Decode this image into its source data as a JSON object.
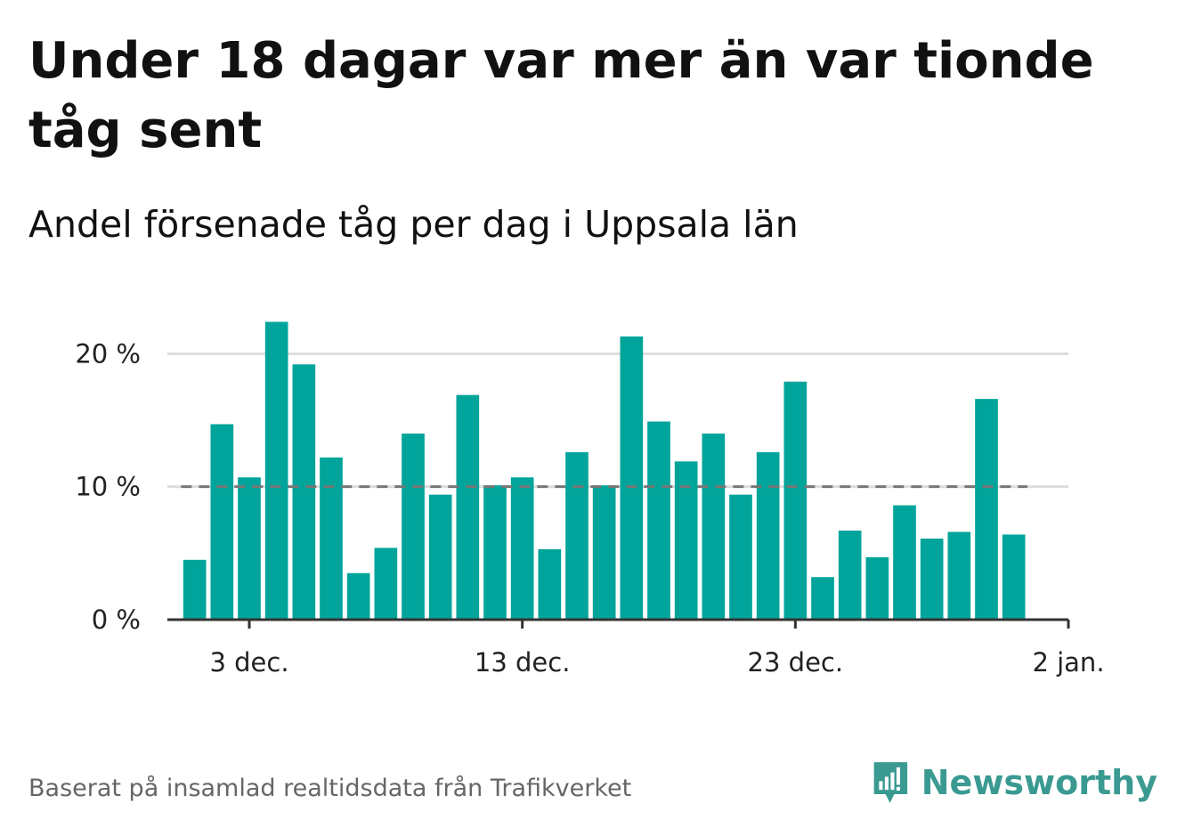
{
  "title": "Under 18 dagar var mer än var tionde tåg sent",
  "subtitle": "Andel försenade tåg per dag i Uppsala län",
  "footer": "Baserat på insamlad realtidsdata från Trafikverket",
  "brand": {
    "name": "Newsworthy",
    "icon": "newsworthy-logo-icon",
    "color": "#3a9a92"
  },
  "colors": {
    "bar": "#00a49a",
    "reference_line": "#777777",
    "grid": "#dddddd",
    "axis": "#333333"
  },
  "chart_data": {
    "type": "bar",
    "x_type": "date",
    "x": [
      "2023-12-01",
      "2023-12-02",
      "2023-12-03",
      "2023-12-04",
      "2023-12-05",
      "2023-12-06",
      "2023-12-07",
      "2023-12-08",
      "2023-12-09",
      "2023-12-10",
      "2023-12-11",
      "2023-12-12",
      "2023-12-13",
      "2023-12-14",
      "2023-12-15",
      "2023-12-16",
      "2023-12-17",
      "2023-12-18",
      "2023-12-19",
      "2023-12-20",
      "2023-12-21",
      "2023-12-22",
      "2023-12-23",
      "2023-12-24",
      "2023-12-25",
      "2023-12-26",
      "2023-12-27",
      "2023-12-28",
      "2023-12-29",
      "2023-12-30",
      "2023-12-31",
      "2024-01-01"
    ],
    "values": [
      4.5,
      14.7,
      10.7,
      22.4,
      19.2,
      12.2,
      3.5,
      5.4,
      14.0,
      9.4,
      16.9,
      10.1,
      10.7,
      5.3,
      12.6,
      10.1,
      21.3,
      14.9,
      11.9,
      14.0,
      9.4,
      12.6,
      17.9,
      3.2,
      6.7,
      4.7,
      8.6,
      6.1,
      6.6,
      16.6,
      6.4,
      0
    ],
    "ylim": [
      0,
      22.5
    ],
    "y_ticks": [
      {
        "value": 0,
        "label": "0 %"
      },
      {
        "value": 10,
        "label": "10 %"
      },
      {
        "value": 20,
        "label": "20 %"
      }
    ],
    "x_ticks": [
      {
        "date": "2023-12-03",
        "label": "3 dec."
      },
      {
        "date": "2023-12-13",
        "label": "13 dec."
      },
      {
        "date": "2023-12-23",
        "label": "23 dec."
      },
      {
        "date": "2024-01-02",
        "label": "2 jan."
      }
    ],
    "x_start": "2023-11-30",
    "x_end": "2024-01-02",
    "reference_line": 10,
    "grid": true,
    "xlabel": "",
    "ylabel": ""
  }
}
